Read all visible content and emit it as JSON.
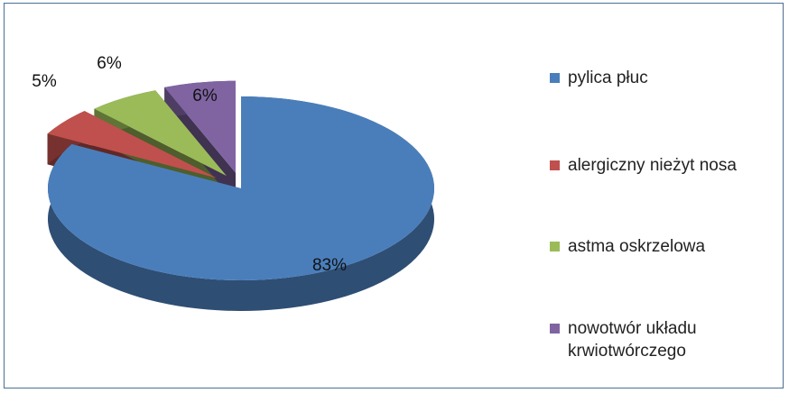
{
  "chart_data": {
    "type": "pie",
    "style": "3d-exploded",
    "title": "",
    "legend_position": "right",
    "series": [
      {
        "name": "pylica płuc",
        "value": 83,
        "label": "83%",
        "color": "#4a7ebb"
      },
      {
        "name": "alergiczny nieżyt nosa",
        "value": 5,
        "label": "5%",
        "color": "#c0504d"
      },
      {
        "name": "astma oskrzelowa",
        "value": 6,
        "label": "6%",
        "color": "#9bbb59"
      },
      {
        "name": "nowotwór układu krwiotwórczego",
        "value": 6,
        "label": "6%",
        "color": "#8064a2"
      }
    ]
  }
}
